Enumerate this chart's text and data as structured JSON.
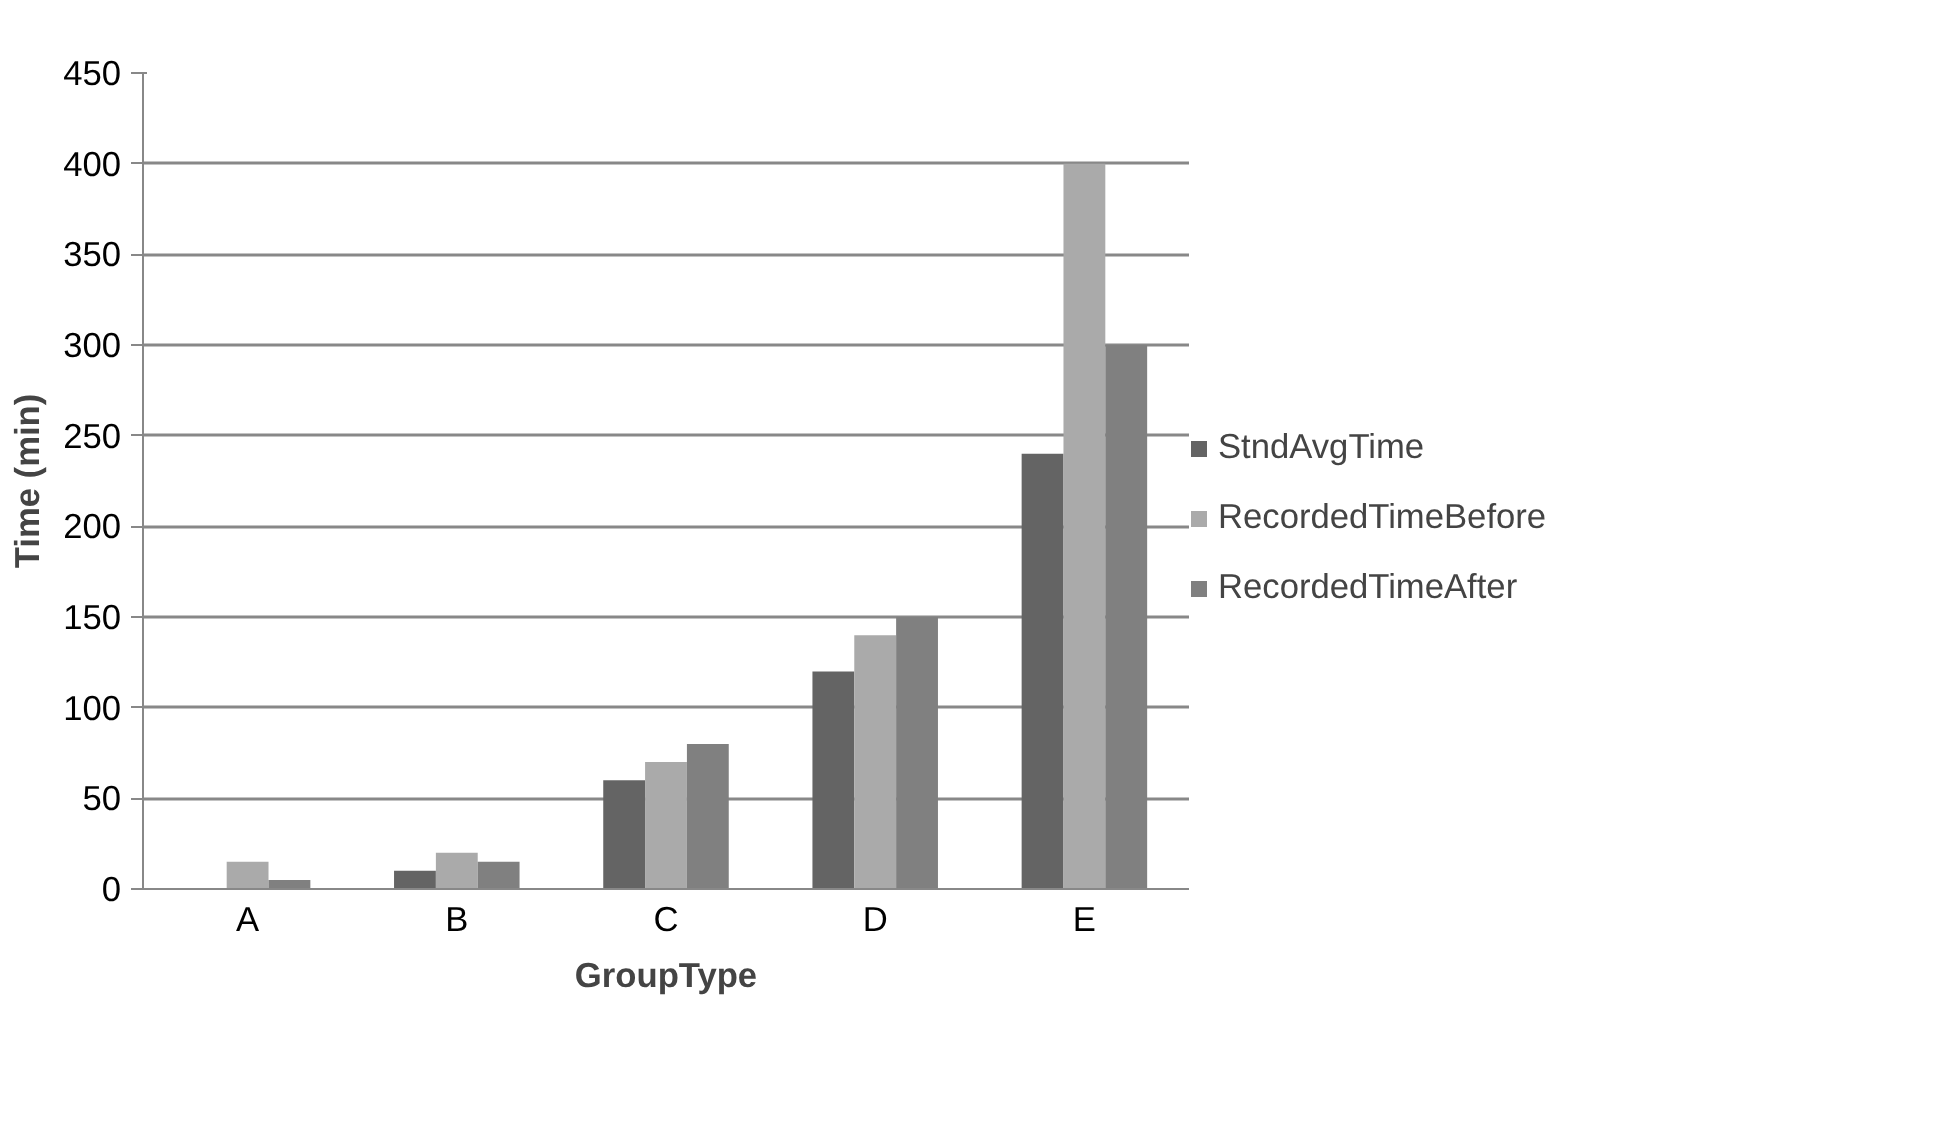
{
  "chart_data": {
    "type": "bar",
    "xlabel": "GroupType",
    "ylabel": "Time (min)",
    "categories": [
      "A",
      "B",
      "C",
      "D",
      "E"
    ],
    "series": [
      {
        "name": "StndAvgTime",
        "color": "#646464",
        "values": [
          null,
          10,
          60,
          120,
          240
        ]
      },
      {
        "name": "RecordedTimeBefore",
        "color": "#aaaaaa",
        "values": [
          15,
          20,
          70,
          140,
          400
        ]
      },
      {
        "name": "RecordedTimeAfter",
        "color": "#808080",
        "values": [
          5,
          15,
          80,
          150,
          300
        ]
      }
    ],
    "ylim": [
      0,
      450
    ],
    "yticks": [
      0,
      50,
      100,
      150,
      200,
      250,
      300,
      350,
      400,
      450
    ],
    "grid": "y",
    "legend": "right"
  }
}
